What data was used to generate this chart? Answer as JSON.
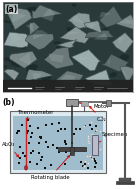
{
  "fig_width": 1.36,
  "fig_height": 1.89,
  "dpi": 100,
  "panel_a_label": "(a)",
  "panel_b_label": "(b)",
  "labels": {
    "thermometer": "Thermometer",
    "motor": "Motor",
    "co2": "CO₂",
    "al2o3": "Al₂O₃",
    "specimen": "Specimen",
    "rotating_blade": "Rotating blade"
  },
  "bg_color": "#ffffff",
  "arrow_color": "#cc0000",
  "text_color": "#000000",
  "stand_color": "#555555",
  "container_bg": "#c8dce8",
  "liquid_color": "#8aafc0",
  "particle_dark": "#111111",
  "particle_white": "#e8e8e8"
}
